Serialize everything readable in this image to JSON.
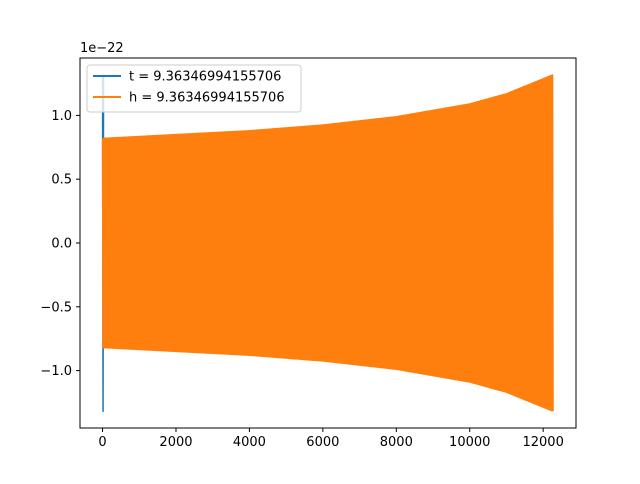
{
  "chart_data": {
    "type": "line",
    "title": "",
    "xlabel": "",
    "ylabel": "",
    "y_offset_label": "1e−22",
    "xlim": [
      -614,
      12894
    ],
    "ylim": [
      -1.45,
      1.45
    ],
    "y_scale_factor": 1e-22,
    "x_ticks": [
      0,
      2000,
      4000,
      6000,
      8000,
      10000,
      12000
    ],
    "x_tick_labels": [
      "0",
      "2000",
      "4000",
      "6000",
      "8000",
      "10000",
      "12000"
    ],
    "y_ticks": [
      -1.0,
      -0.5,
      0.0,
      0.5,
      1.0
    ],
    "y_tick_labels": [
      "−1.0",
      "−0.5",
      "0.0",
      "0.5",
      "1.0"
    ],
    "grid": false,
    "legend_position": "top-left",
    "series": [
      {
        "name": "t = 9.36346994155706",
        "color": "#1f77b4",
        "kind": "oscillation",
        "x_start": 0,
        "x_end": 40,
        "envelope_start": 1.32,
        "envelope_end": 1.32
      },
      {
        "name": "h = 9.36346994155706",
        "color": "#ff7f0e",
        "kind": "oscillation",
        "x_start": 0,
        "x_end": 12280,
        "envelope": [
          [
            0,
            0.82
          ],
          [
            2000,
            0.85
          ],
          [
            4000,
            0.88
          ],
          [
            6000,
            0.925
          ],
          [
            8000,
            0.99
          ],
          [
            10000,
            1.09
          ],
          [
            11000,
            1.17
          ],
          [
            12280,
            1.32
          ]
        ]
      }
    ]
  }
}
